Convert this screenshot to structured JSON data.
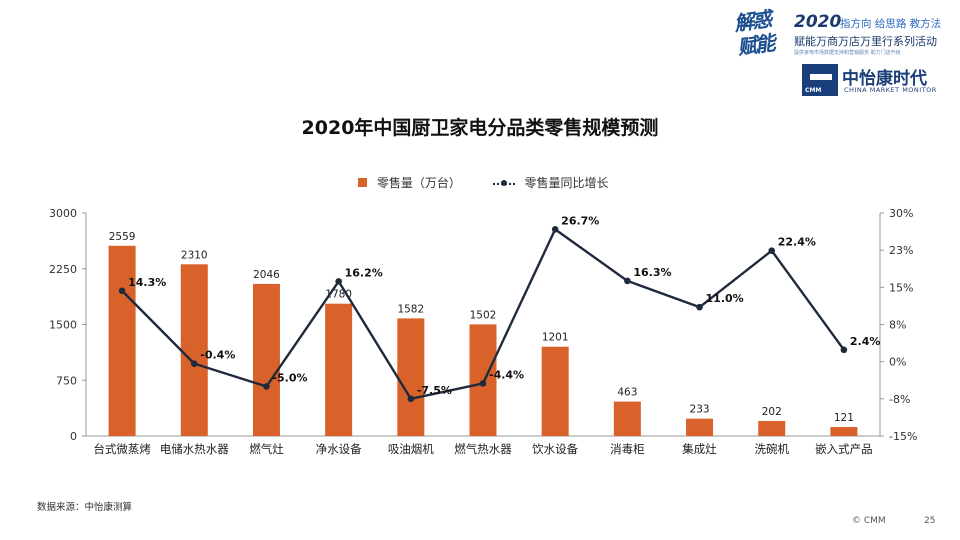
{
  "brand": {
    "script_text": "解惑赋能",
    "year": "2020",
    "slogan": "指方向 给思路 教方法",
    "campaign": "赋能万商万店万里行系列活动",
    "sub_text": "提供家电市场数据支持和营销服务 助力门店升级",
    "logo_cn": "中怡康时代",
    "logo_en": "CHINA MARKET MONITOR",
    "logo_abbr": "CMM"
  },
  "chart_data": {
    "type": "bar",
    "title": "2020年中国厨卫家电分品类零售规模预测",
    "categories": [
      "台式微蒸烤",
      "电储水热水器",
      "燃气灶",
      "净水设备",
      "吸油烟机",
      "燃气热水器",
      "饮水设备",
      "消毒柜",
      "集成灶",
      "洗碗机",
      "嵌入式产品"
    ],
    "series": [
      {
        "name": "零售量（万台）",
        "type": "bar",
        "axis": "left",
        "color": "#d9622b",
        "values": [
          2559,
          2310,
          2046,
          1780,
          1582,
          1502,
          1201,
          463,
          233,
          202,
          121
        ],
        "labels": [
          "2559",
          "2310",
          "2046",
          "1780",
          "1582",
          "1502",
          "1201",
          "463",
          "233",
          "202",
          "121"
        ]
      },
      {
        "name": "零售量同比增长",
        "type": "line",
        "axis": "right",
        "color": "#1f2a3d",
        "values": [
          14.3,
          -0.4,
          -5.0,
          16.2,
          -7.5,
          -4.4,
          26.7,
          16.3,
          11.0,
          22.4,
          2.4
        ],
        "labels": [
          "14.3%",
          "-0.4%",
          "-5.0%",
          "16.2%",
          "-7.5%",
          "-4.4%",
          "26.7%",
          "16.3%",
          "11.0%",
          "22.4%",
          "2.4%"
        ]
      }
    ],
    "y_left": {
      "ylim": [
        0,
        3000
      ],
      "ticks": [
        0,
        750,
        1500,
        2250,
        3000
      ],
      "tick_labels": [
        "0",
        "750",
        "1500",
        "2250",
        "3000"
      ]
    },
    "y_right": {
      "ylim": [
        -15,
        30
      ],
      "ticks": [
        -15,
        -7.5,
        0,
        7.5,
        15,
        22.5,
        30
      ],
      "tick_labels": [
        "-15%",
        "-8%",
        "0%",
        "8%",
        "15%",
        "23%",
        "30%"
      ]
    },
    "grid": false,
    "legend_position": "top-center"
  },
  "legend": {
    "bar_label": "零售量（万台）",
    "line_label": "零售量同比增长"
  },
  "footer": {
    "source": "数据来源：中怡康测算",
    "copyright": "© CMM",
    "page": "25"
  }
}
